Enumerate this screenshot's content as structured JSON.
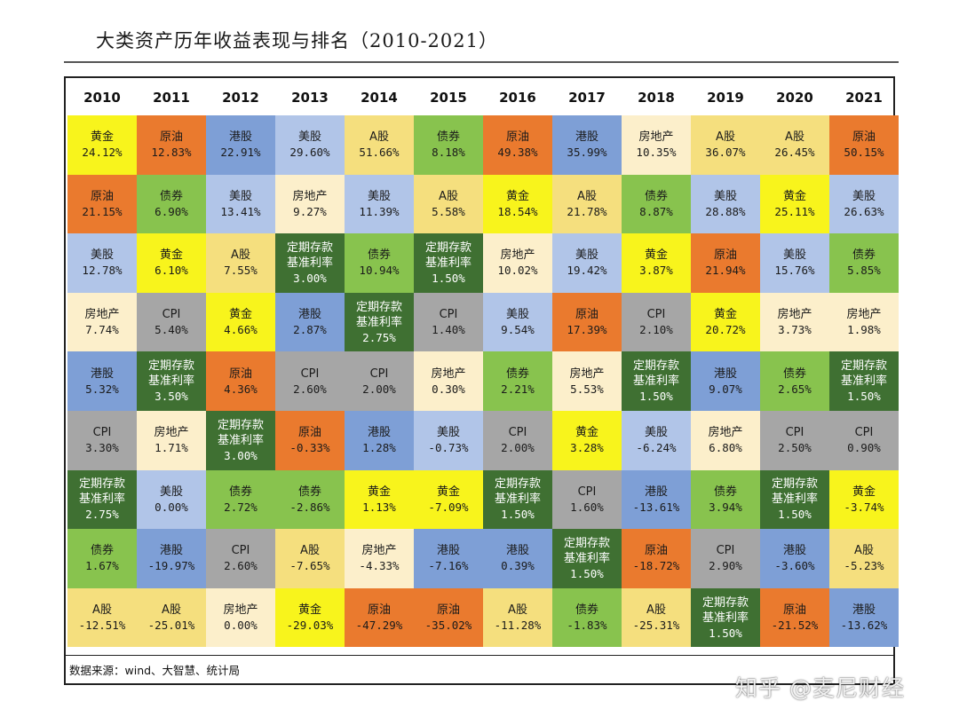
{
  "title": "大类资产历年收益表现与排名（2010-2021）",
  "source": "数据来源：wind、大智慧、统计局",
  "watermark": "知乎 @麦尼财经",
  "asset_colors": {
    "黄金": "#f8f41c",
    "原油": "#ea7a2e",
    "港股": "#7e9fd6",
    "美股": "#b1c5e8",
    "A股": "#f5df7e",
    "债券": "#88c34e",
    "房地产": "#fcefcb",
    "CPI": "#a6a6a6",
    "定期存款基准利率": "#3f7032"
  },
  "chart_data": {
    "type": "table",
    "title": "大类资产历年收益表现与排名（2010-2021）",
    "years": [
      "2010",
      "2011",
      "2012",
      "2013",
      "2014",
      "2015",
      "2016",
      "2017",
      "2018",
      "2019",
      "2020",
      "2021"
    ],
    "columns": [
      [
        [
          "黄金",
          "24.12%"
        ],
        [
          "原油",
          "21.15%"
        ],
        [
          "美股",
          "12.78%"
        ],
        [
          "房地产",
          "7.74%"
        ],
        [
          "港股",
          "5.32%"
        ],
        [
          "CPI",
          "3.30%"
        ],
        [
          "定期存款基准利率",
          "2.75%"
        ],
        [
          "债券",
          "1.67%"
        ],
        [
          "A股",
          "-12.51%"
        ]
      ],
      [
        [
          "原油",
          "12.83%"
        ],
        [
          "债券",
          "6.90%"
        ],
        [
          "黄金",
          "6.10%"
        ],
        [
          "CPI",
          "5.40%"
        ],
        [
          "定期存款基准利率",
          "3.50%"
        ],
        [
          "房地产",
          "1.71%"
        ],
        [
          "美股",
          "0.00%"
        ],
        [
          "港股",
          "-19.97%"
        ],
        [
          "A股",
          "-25.01%"
        ]
      ],
      [
        [
          "港股",
          "22.91%"
        ],
        [
          "美股",
          "13.41%"
        ],
        [
          "A股",
          "7.55%"
        ],
        [
          "黄金",
          "4.66%"
        ],
        [
          "原油",
          "4.36%"
        ],
        [
          "定期存款基准利率",
          "3.00%"
        ],
        [
          "债券",
          "2.72%"
        ],
        [
          "CPI",
          "2.60%"
        ],
        [
          "房地产",
          "0.00%"
        ]
      ],
      [
        [
          "美股",
          "29.60%"
        ],
        [
          "房地产",
          "9.27%"
        ],
        [
          "定期存款基准利率",
          "3.00%"
        ],
        [
          "港股",
          "2.87%"
        ],
        [
          "CPI",
          "2.60%"
        ],
        [
          "原油",
          "-0.33%"
        ],
        [
          "债券",
          "-2.86%"
        ],
        [
          "A股",
          "-7.65%"
        ],
        [
          "黄金",
          "-29.03%"
        ]
      ],
      [
        [
          "A股",
          "51.66%"
        ],
        [
          "美股",
          "11.39%"
        ],
        [
          "债券",
          "10.94%"
        ],
        [
          "定期存款基准利率",
          "2.75%"
        ],
        [
          "CPI",
          "2.00%"
        ],
        [
          "港股",
          "1.28%"
        ],
        [
          "黄金",
          "1.13%"
        ],
        [
          "房地产",
          "-4.33%"
        ],
        [
          "原油",
          "-47.29%"
        ]
      ],
      [
        [
          "债券",
          "8.18%"
        ],
        [
          "A股",
          "5.58%"
        ],
        [
          "定期存款基准利率",
          "1.50%"
        ],
        [
          "CPI",
          "1.40%"
        ],
        [
          "房地产",
          "0.30%"
        ],
        [
          "美股",
          "-0.73%"
        ],
        [
          "黄金",
          "-7.09%"
        ],
        [
          "港股",
          "-7.16%"
        ],
        [
          "原油",
          "-35.02%"
        ]
      ],
      [
        [
          "原油",
          "49.38%"
        ],
        [
          "黄金",
          "18.54%"
        ],
        [
          "房地产",
          "10.02%"
        ],
        [
          "美股",
          "9.54%"
        ],
        [
          "债券",
          "2.21%"
        ],
        [
          "CPI",
          "2.00%"
        ],
        [
          "定期存款基准利率",
          "1.50%"
        ],
        [
          "港股",
          "0.39%"
        ],
        [
          "A股",
          "-11.28%"
        ]
      ],
      [
        [
          "港股",
          "35.99%"
        ],
        [
          "A股",
          "21.78%"
        ],
        [
          "美股",
          "19.42%"
        ],
        [
          "原油",
          "17.39%"
        ],
        [
          "房地产",
          "5.53%"
        ],
        [
          "黄金",
          "3.28%"
        ],
        [
          "CPI",
          "1.60%"
        ],
        [
          "定期存款基准利率",
          "1.50%"
        ],
        [
          "债券",
          "-1.83%"
        ]
      ],
      [
        [
          "房地产",
          "10.35%"
        ],
        [
          "债券",
          "8.87%"
        ],
        [
          "黄金",
          "3.87%"
        ],
        [
          "CPI",
          "2.10%"
        ],
        [
          "定期存款基准利率",
          "1.50%"
        ],
        [
          "美股",
          "-6.24%"
        ],
        [
          "港股",
          "-13.61%"
        ],
        [
          "原油",
          "-18.72%"
        ],
        [
          "A股",
          "-25.31%"
        ]
      ],
      [
        [
          "A股",
          "36.07%"
        ],
        [
          "美股",
          "28.88%"
        ],
        [
          "原油",
          "21.94%"
        ],
        [
          "黄金",
          "20.72%"
        ],
        [
          "港股",
          "9.07%"
        ],
        [
          "房地产",
          "6.80%"
        ],
        [
          "债券",
          "3.94%"
        ],
        [
          "CPI",
          "2.90%"
        ],
        [
          "定期存款基准利率",
          "1.50%"
        ]
      ],
      [
        [
          "A股",
          "26.45%"
        ],
        [
          "黄金",
          "25.11%"
        ],
        [
          "美股",
          "15.76%"
        ],
        [
          "房地产",
          "3.73%"
        ],
        [
          "债券",
          "2.65%"
        ],
        [
          "CPI",
          "2.50%"
        ],
        [
          "定期存款基准利率",
          "1.50%"
        ],
        [
          "港股",
          "-3.60%"
        ],
        [
          "原油",
          "-21.52%"
        ]
      ],
      [
        [
          "原油",
          "50.15%"
        ],
        [
          "美股",
          "26.63%"
        ],
        [
          "债券",
          "5.85%"
        ],
        [
          "房地产",
          "1.98%"
        ],
        [
          "定期存款基准利率",
          "1.50%"
        ],
        [
          "CPI",
          "0.90%"
        ],
        [
          "黄金",
          "-3.74%"
        ],
        [
          "A股",
          "-5.23%"
        ],
        [
          "港股",
          "-13.62%"
        ]
      ]
    ]
  }
}
